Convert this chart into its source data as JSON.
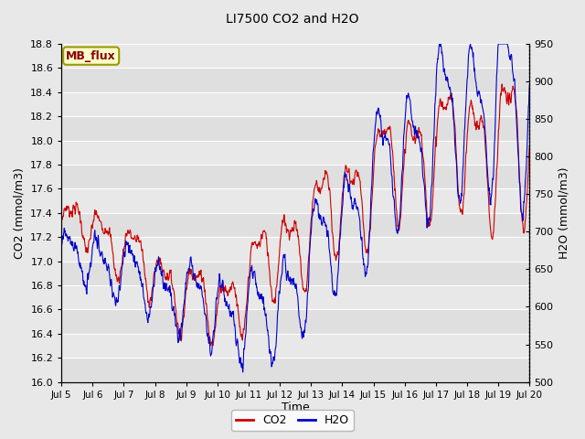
{
  "title": "LI7500 CO2 and H2O",
  "xlabel": "Time",
  "ylabel_left": "CO2 (mmol/m3)",
  "ylabel_right": "H2O (mmol/m3)",
  "co2_color": "#cc0000",
  "h2o_color": "#0000cc",
  "co2_lw": 0.8,
  "h2o_lw": 0.8,
  "ylim_left": [
    16.0,
    18.8
  ],
  "ylim_right": [
    500,
    950
  ],
  "yticks_left": [
    16.0,
    16.2,
    16.4,
    16.6,
    16.8,
    17.0,
    17.2,
    17.4,
    17.6,
    17.8,
    18.0,
    18.2,
    18.4,
    18.6,
    18.8
  ],
  "yticks_right": [
    500,
    550,
    600,
    650,
    700,
    750,
    800,
    850,
    900,
    950
  ],
  "xtick_labels": [
    "Jul 5",
    "Jul 6",
    "Jul 7",
    "Jul 8",
    "Jul 9",
    "Jul 10",
    "Jul 11",
    "Jul 12",
    "Jul 13",
    "Jul 14",
    "Jul 15",
    "Jul 16",
    "Jul 17",
    "Jul 18",
    "Jul 19",
    "Jul 20"
  ],
  "bg_color": "#e8e8e8",
  "plot_bg_color": "#e8e8e8",
  "grid_color": "#ffffff",
  "legend_co2": "CO2",
  "legend_h2o": "H2O",
  "annotation_text": "MB_flux",
  "annotation_color": "#8b0000",
  "annotation_bg": "#ffffcc",
  "annotation_border": "#999900",
  "n_points": 1500,
  "days": 15
}
